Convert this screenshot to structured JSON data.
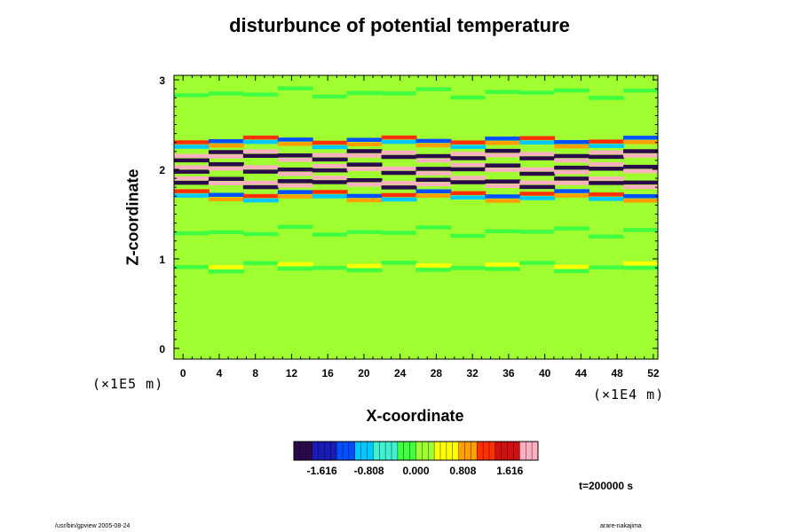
{
  "chart_data": {
    "type": "heatmap",
    "title": "disturbunce of potential temperature",
    "xlabel": "X-coordinate",
    "ylabel": "Z-coordinate",
    "x_unit": "(×1E4 m)",
    "y_unit": "(×1E5 m)",
    "xlim": [
      -1,
      52.5
    ],
    "ylim": [
      -0.12,
      3.05
    ],
    "x_ticks": [
      0,
      4,
      8,
      12,
      16,
      20,
      24,
      28,
      32,
      36,
      40,
      44,
      48,
      52
    ],
    "y_ticks": [
      0,
      1,
      2,
      3
    ],
    "colorbar": {
      "ticks": [
        "-1.616",
        "-0.808",
        "0.000",
        "0.808",
        "1.616"
      ],
      "range": [
        -2.1,
        2.1
      ],
      "colors": [
        "#2a0a4a",
        "#1a1ab4",
        "#0050ff",
        "#00c8ff",
        "#40f0d0",
        "#40ff40",
        "#a0ff30",
        "#ffff00",
        "#ffa000",
        "#ff3000",
        "#d01010",
        "#ffb0c0"
      ]
    },
    "background_value": 0.0,
    "bands": [
      {
        "z": 2.85,
        "amplitude": 0.2
      },
      {
        "z": 2.3,
        "amplitude": 1.2
      },
      {
        "z": 2.15,
        "amplitude": 2.5
      },
      {
        "z": 2.0,
        "amplitude": 2.6
      },
      {
        "z": 1.85,
        "amplitude": 2.5
      },
      {
        "z": 1.7,
        "amplitude": 1.3
      },
      {
        "z": 1.3,
        "amplitude": 0.3
      },
      {
        "z": 0.9,
        "amplitude": -0.35
      }
    ],
    "annotation": "t=200000 s"
  },
  "footer": {
    "left": "/usr/bin/gpview 2005-08-24",
    "right": "arare-nakajima"
  }
}
